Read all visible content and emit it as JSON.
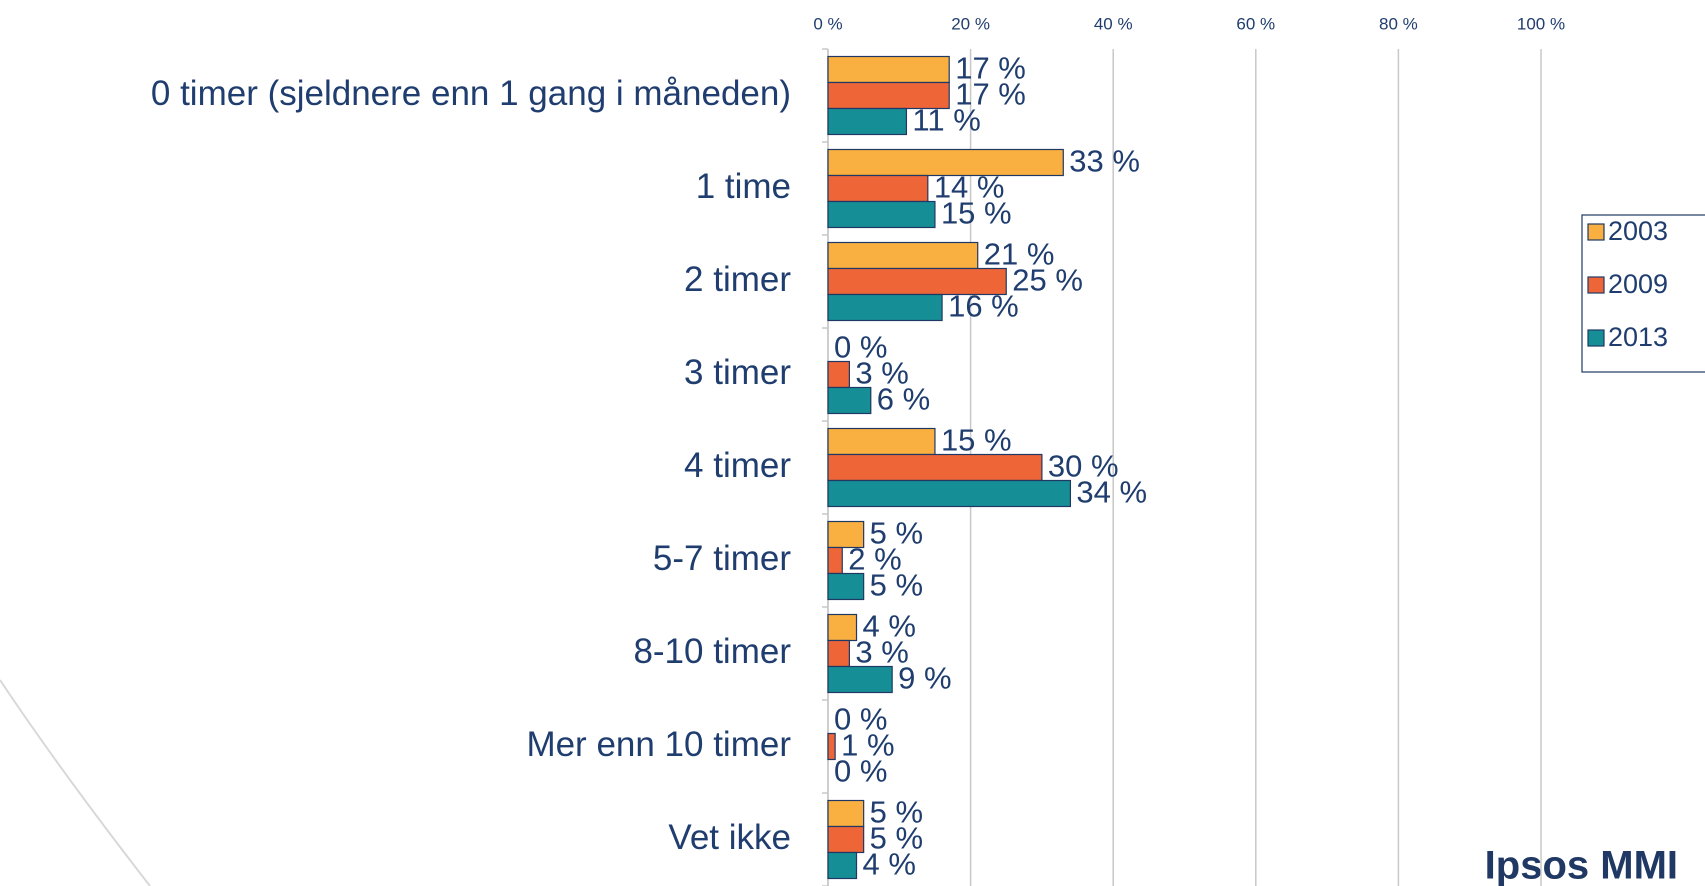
{
  "chart_data": {
    "type": "bar",
    "orientation": "horizontal",
    "categories": [
      "0 timer (sjeldnere enn 1 gang i måneden)",
      "1 time",
      "2 timer",
      "3 timer",
      "4 timer",
      "5-7 timer",
      "8-10 timer",
      "Mer enn 10 timer",
      "Vet ikke"
    ],
    "series": [
      {
        "name": "2003",
        "color": "#f9b040",
        "values": [
          17,
          33,
          21,
          0,
          15,
          5,
          4,
          0,
          5
        ],
        "value_labels": [
          "17 %",
          "33 %",
          "21 %",
          "0 %",
          "15 %",
          "5 %",
          "4 %",
          "0 %",
          "5 %"
        ]
      },
      {
        "name": "2009",
        "color": "#ee6537",
        "values": [
          17,
          14,
          25,
          3,
          30,
          2,
          3,
          1,
          5
        ],
        "value_labels": [
          "17 %",
          "14 %",
          "25 %",
          "3 %",
          "30 %",
          "2 %",
          "3 %",
          "1 %",
          "5 %"
        ]
      },
      {
        "name": "2013",
        "color": "#168e95",
        "values": [
          11,
          15,
          16,
          6,
          34,
          5,
          9,
          0,
          4
        ],
        "value_labels": [
          "11 %",
          "15 %",
          "16 %",
          "6 %",
          "34 %",
          "5 %",
          "9 %",
          "0 %",
          "4 %"
        ]
      }
    ],
    "xlim": [
      0,
      100
    ],
    "xticks": [
      {
        "value": 0,
        "label": "0 %"
      },
      {
        "value": 20,
        "label": "20 %"
      },
      {
        "value": 40,
        "label": "40 %"
      },
      {
        "value": 60,
        "label": "60 %"
      },
      {
        "value": 80,
        "label": "80 %"
      },
      {
        "value": 100,
        "label": "100 %"
      }
    ],
    "grid": true,
    "legend": "right",
    "logo": "Ipsos MMI"
  }
}
